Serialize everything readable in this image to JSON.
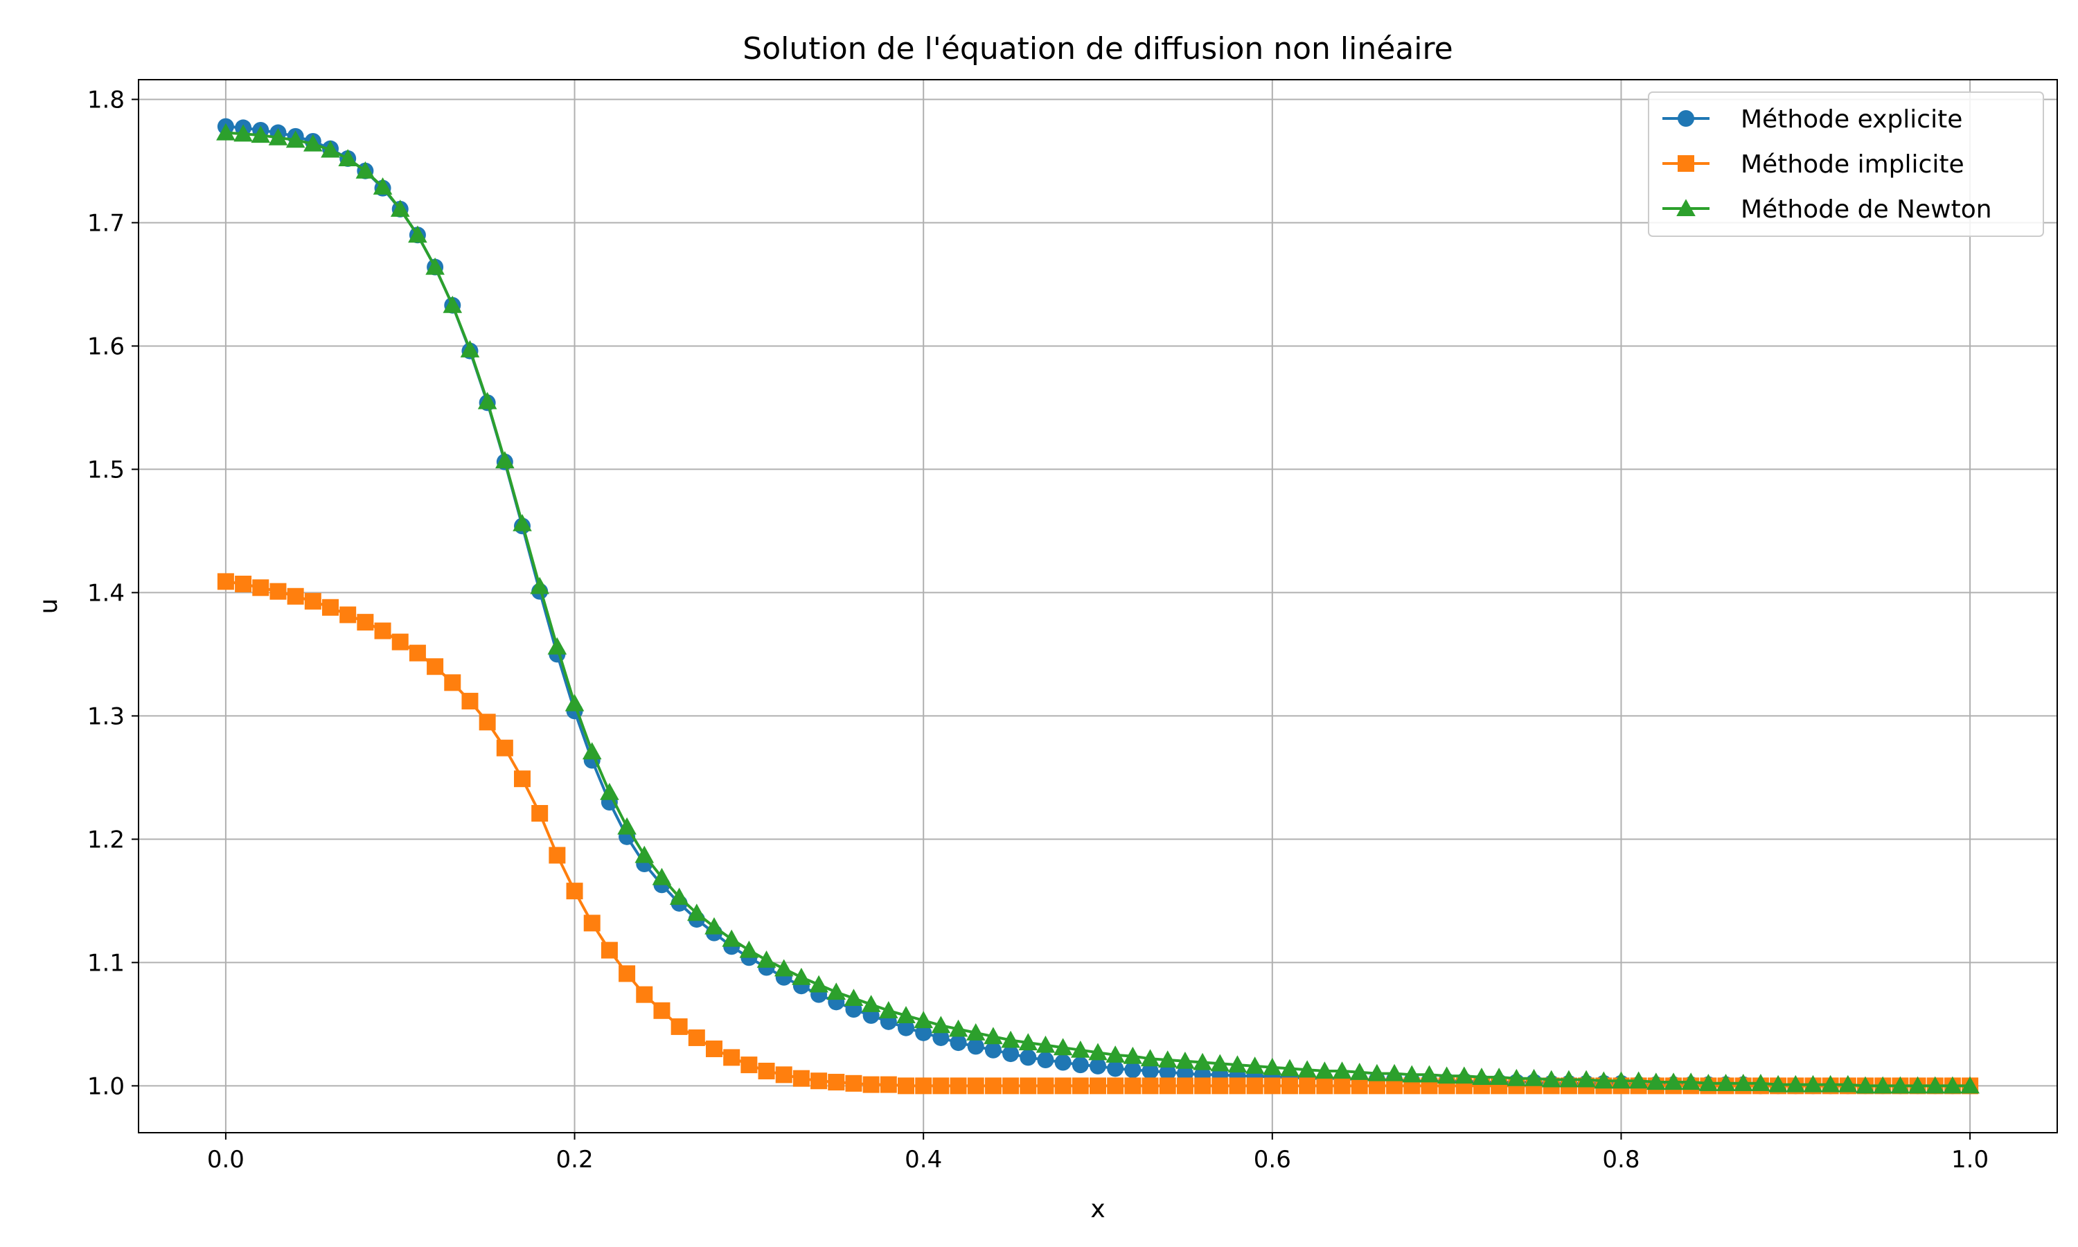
{
  "chart_data": {
    "type": "line",
    "title": "Solution de l'équation de diffusion non linéaire",
    "xlabel": "x",
    "ylabel": "u",
    "xlim": [
      -0.05,
      1.05
    ],
    "ylim": [
      0.962,
      1.816
    ],
    "xticks": [
      0.0,
      0.2,
      0.4,
      0.6,
      0.8,
      1.0
    ],
    "xtick_labels": [
      "0.0",
      "0.2",
      "0.4",
      "0.6",
      "0.8",
      "1.0"
    ],
    "yticks": [
      1.0,
      1.1,
      1.2,
      1.3,
      1.4,
      1.5,
      1.6,
      1.7,
      1.8
    ],
    "ytick_labels": [
      "1.0",
      "1.1",
      "1.2",
      "1.3",
      "1.4",
      "1.5",
      "1.6",
      "1.7",
      "1.8"
    ],
    "grid": true,
    "legend_position": "top-right",
    "series": [
      {
        "name": "Méthode explicite",
        "color": "#1f77b4",
        "marker": "circle",
        "values": [
          1.778,
          1.777,
          1.775,
          1.773,
          1.77,
          1.766,
          1.76,
          1.752,
          1.742,
          1.728,
          1.711,
          1.69,
          1.664,
          1.633,
          1.596,
          1.554,
          1.506,
          1.454,
          1.401,
          1.35,
          1.304,
          1.264,
          1.23,
          1.202,
          1.18,
          1.163,
          1.148,
          1.135,
          1.124,
          1.113,
          1.104,
          1.096,
          1.088,
          1.081,
          1.074,
          1.068,
          1.062,
          1.057,
          1.052,
          1.047,
          1.043,
          1.039,
          1.035,
          1.032,
          1.029,
          1.026,
          1.023,
          1.021,
          1.019,
          1.017,
          1.016,
          1.014,
          1.013,
          1.012,
          1.011,
          1.01,
          1.009,
          1.009,
          1.008,
          1.008,
          1.007,
          1.007,
          1.006,
          1.006,
          1.006,
          1.005,
          1.005,
          1.005,
          1.004,
          1.004,
          1.004,
          1.004,
          1.003,
          1.003,
          1.003,
          1.003,
          1.002,
          1.002,
          1.002,
          1.002,
          1.002,
          1.001,
          1.001,
          1.001,
          1.001,
          1.001,
          1.001,
          1.001,
          1.0,
          1.0,
          1.0,
          1.0,
          1.0,
          1.0,
          1.0,
          1.0,
          1.0,
          1.0,
          1.0,
          1.0,
          1.0
        ]
      },
      {
        "name": "Méthode implicite",
        "color": "#ff7f0e",
        "marker": "square",
        "values": [
          1.409,
          1.407,
          1.404,
          1.401,
          1.397,
          1.393,
          1.388,
          1.382,
          1.376,
          1.369,
          1.36,
          1.351,
          1.34,
          1.327,
          1.312,
          1.295,
          1.274,
          1.249,
          1.221,
          1.187,
          1.158,
          1.132,
          1.11,
          1.091,
          1.074,
          1.061,
          1.048,
          1.039,
          1.03,
          1.023,
          1.017,
          1.012,
          1.009,
          1.006,
          1.004,
          1.003,
          1.002,
          1.001,
          1.001,
          1.0,
          1.0,
          1.0,
          1.0,
          1.0,
          1.0,
          1.0,
          1.0,
          1.0,
          1.0,
          1.0,
          1.0,
          1.0,
          1.0,
          1.0,
          1.0,
          1.0,
          1.0,
          1.0,
          1.0,
          1.0,
          1.0,
          1.0,
          1.0,
          1.0,
          1.0,
          1.0,
          1.0,
          1.0,
          1.0,
          1.0,
          1.0,
          1.0,
          1.0,
          1.0,
          1.0,
          1.0,
          1.0,
          1.0,
          1.0,
          1.0,
          1.0,
          1.0,
          1.0,
          1.0,
          1.0,
          1.0,
          1.0,
          1.0,
          1.0,
          1.0,
          1.0,
          1.0,
          1.0,
          1.0,
          1.0,
          1.0,
          1.0,
          1.0,
          1.0,
          1.0,
          1.0
        ]
      },
      {
        "name": "Méthode de Newton",
        "color": "#2ca02c",
        "marker": "triangle",
        "values": [
          1.773,
          1.772,
          1.771,
          1.769,
          1.767,
          1.764,
          1.759,
          1.752,
          1.742,
          1.729,
          1.711,
          1.69,
          1.664,
          1.633,
          1.597,
          1.555,
          1.507,
          1.456,
          1.405,
          1.356,
          1.31,
          1.271,
          1.238,
          1.21,
          1.187,
          1.169,
          1.153,
          1.14,
          1.129,
          1.119,
          1.11,
          1.102,
          1.095,
          1.088,
          1.082,
          1.076,
          1.071,
          1.066,
          1.061,
          1.057,
          1.053,
          1.049,
          1.046,
          1.043,
          1.04,
          1.037,
          1.035,
          1.033,
          1.031,
          1.029,
          1.027,
          1.025,
          1.024,
          1.022,
          1.021,
          1.02,
          1.019,
          1.018,
          1.017,
          1.016,
          1.015,
          1.014,
          1.013,
          1.012,
          1.012,
          1.011,
          1.01,
          1.01,
          1.009,
          1.009,
          1.008,
          1.008,
          1.007,
          1.007,
          1.006,
          1.006,
          1.005,
          1.005,
          1.005,
          1.004,
          1.004,
          1.004,
          1.003,
          1.003,
          1.003,
          1.002,
          1.002,
          1.002,
          1.002,
          1.001,
          1.001,
          1.001,
          1.001,
          1.001,
          1.0,
          1.0,
          1.0,
          1.0,
          1.0,
          1.0,
          1.0
        ]
      }
    ]
  }
}
